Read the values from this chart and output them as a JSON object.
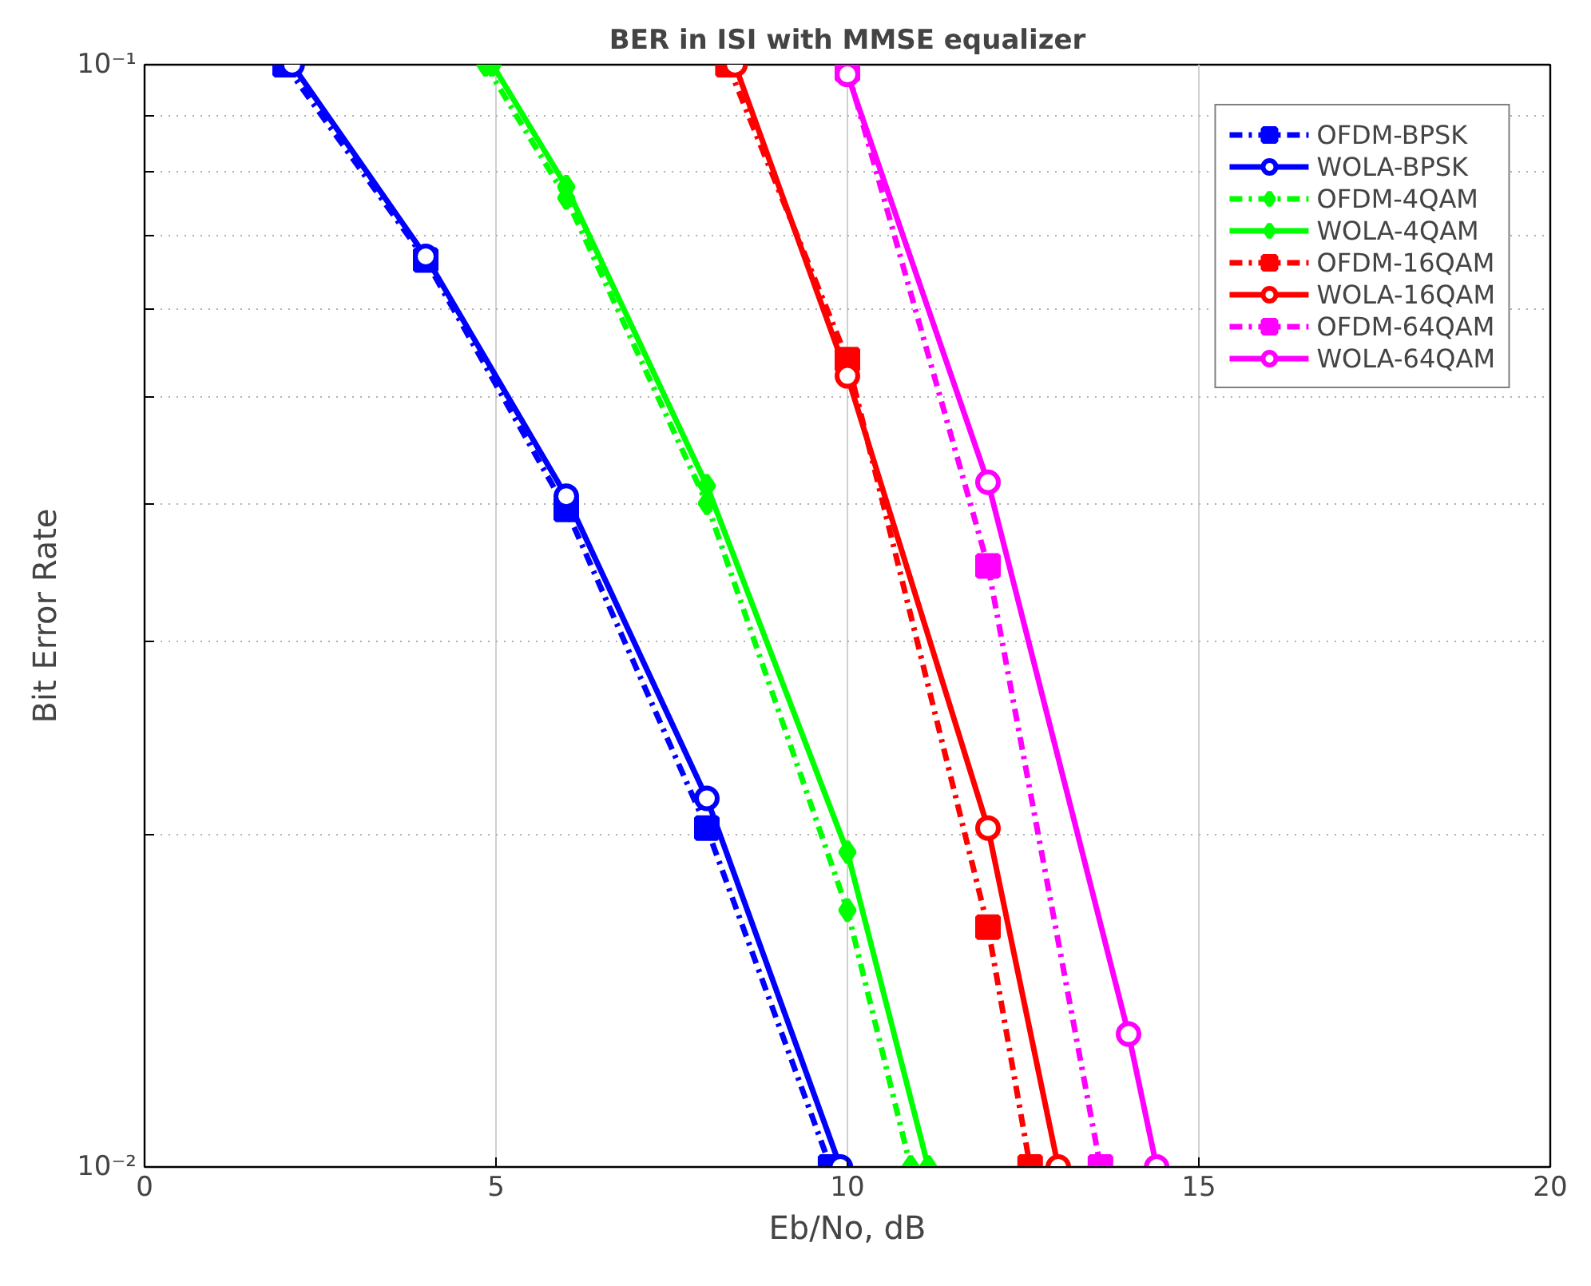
{
  "chart_data": {
    "type": "line",
    "title": "BER in ISI with MMSE equalizer",
    "xlabel": "Eb/No, dB",
    "ylabel": "Bit Error Rate",
    "log": "y",
    "grid": true,
    "legend": "top right",
    "xlim": [
      0,
      20
    ],
    "xticks": [
      0,
      5,
      10,
      15,
      20
    ],
    "ylim": [
      0.01,
      0.1
    ],
    "yticks": [
      {
        "value": 0.01,
        "label": "10⁻²"
      },
      {
        "value": 0.02,
        "label": null
      },
      {
        "value": 0.03,
        "label": null
      },
      {
        "value": 0.04,
        "label": null
      },
      {
        "value": 0.05,
        "label": null
      },
      {
        "value": 0.06,
        "label": null
      },
      {
        "value": 0.07,
        "label": null
      },
      {
        "value": 0.08,
        "label": null
      },
      {
        "value": 0.09,
        "label": null
      },
      {
        "value": 0.1,
        "label": "10⁻¹"
      }
    ],
    "series": [
      {
        "name": "OFDM-BPSK",
        "color": "#0000ff",
        "marker": "square",
        "line_style": "dashed",
        "x": [
          2.0,
          4,
          6,
          8,
          9.76
        ],
        "values": [
          0.1,
          0.0665,
          0.0395,
          0.0203,
          0.01
        ]
      },
      {
        "name": "WOLA-BPSK",
        "color": "#0000ff",
        "marker": "circle",
        "line_style": "solid",
        "x": [
          2.1,
          4,
          6,
          8,
          9.9
        ],
        "values": [
          0.1,
          0.067,
          0.0406,
          0.0216,
          0.01
        ]
      },
      {
        "name": "OFDM-4QAM",
        "color": "#00ff00",
        "marker": "diamond",
        "line_style": "dashed",
        "x": [
          4.85,
          6,
          8,
          10,
          10.9
        ],
        "values": [
          0.1,
          0.0757,
          0.04,
          0.0171,
          0.01
        ]
      },
      {
        "name": "WOLA-4QAM",
        "color": "#00ff00",
        "marker": "diamond",
        "line_style": "solid",
        "x": [
          4.95,
          6,
          8,
          10,
          11.15
        ],
        "values": [
          0.1,
          0.0775,
          0.0415,
          0.0193,
          0.01
        ]
      },
      {
        "name": "OFDM-16QAM",
        "color": "#ff0000",
        "marker": "square",
        "line_style": "dashed",
        "x": [
          8.3,
          10,
          12,
          12.6
        ],
        "values": [
          0.1,
          0.054,
          0.0165,
          0.01
        ]
      },
      {
        "name": "WOLA-16QAM",
        "color": "#ff0000",
        "marker": "circle",
        "line_style": "solid",
        "x": [
          8.4,
          10,
          12,
          13.0
        ],
        "values": [
          0.1,
          0.0522,
          0.0203,
          0.01
        ]
      },
      {
        "name": "OFDM-64QAM",
        "color": "#ff00ff",
        "marker": "square",
        "line_style": "dashed",
        "x": [
          10,
          12,
          13.6
        ],
        "values": [
          0.099,
          0.0351,
          0.01
        ]
      },
      {
        "name": "WOLA-64QAM",
        "color": "#ff00ff",
        "marker": "circle",
        "line_style": "solid",
        "x": [
          10,
          12,
          14,
          14.4
        ],
        "values": [
          0.098,
          0.0418,
          0.0132,
          0.01
        ]
      }
    ]
  }
}
